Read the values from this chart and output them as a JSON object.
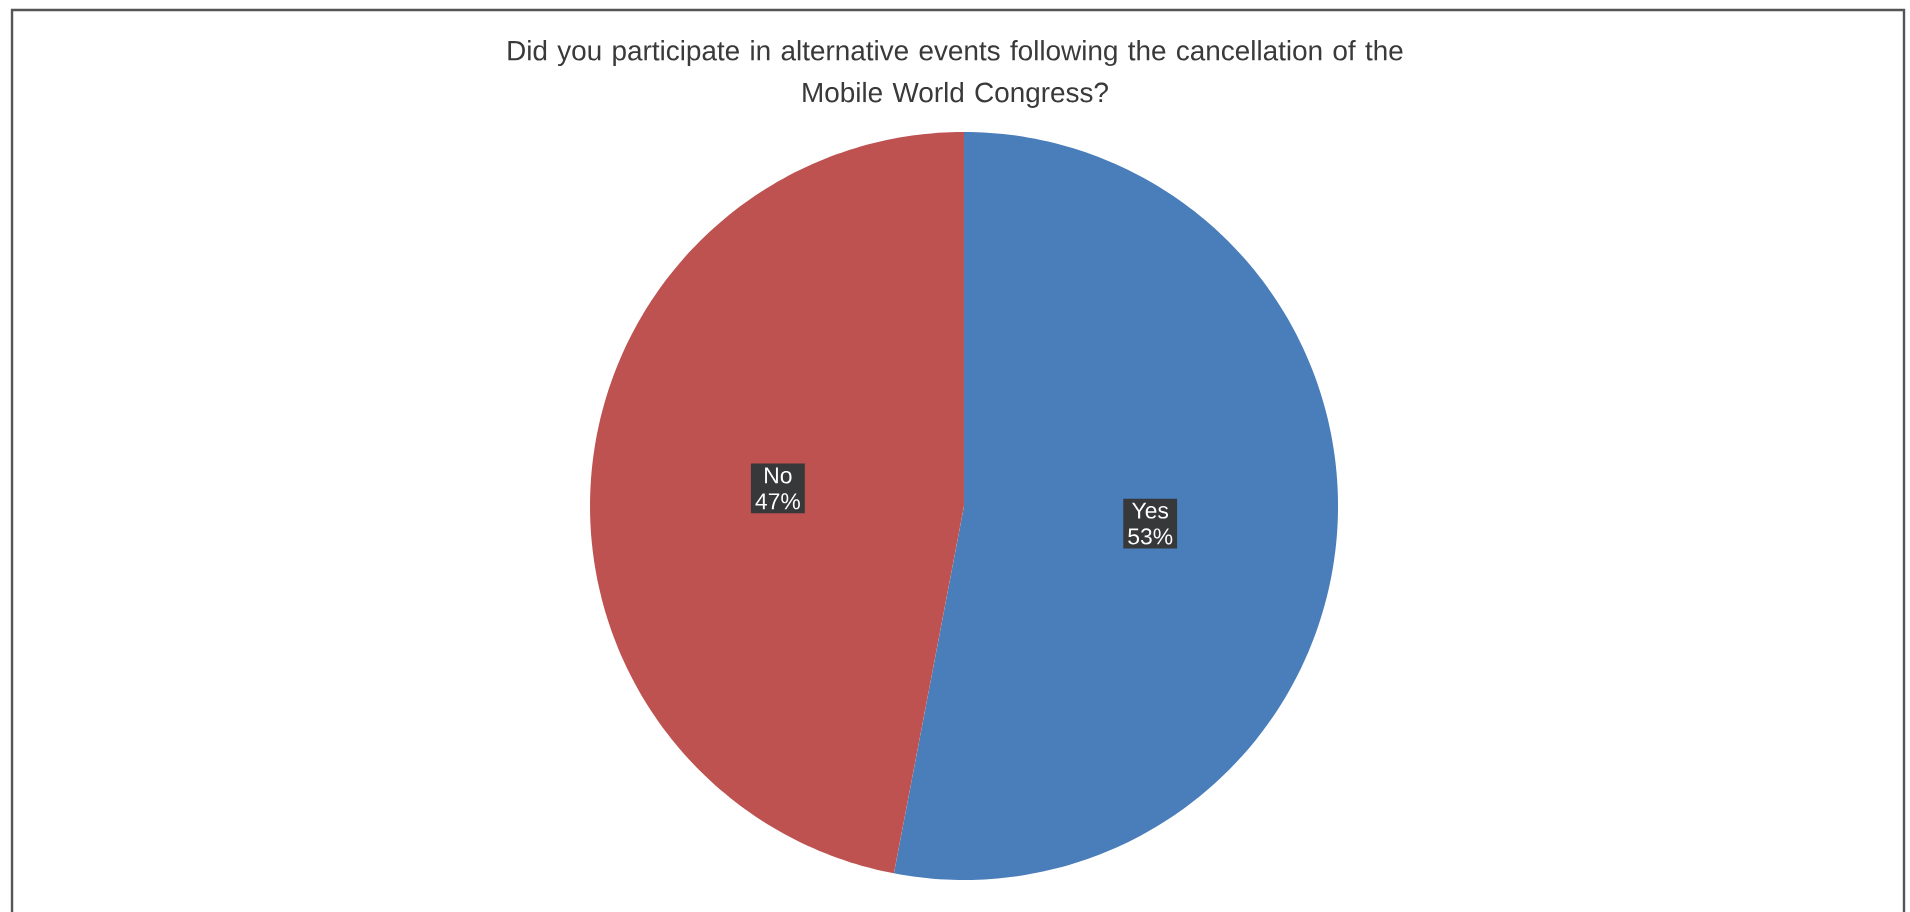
{
  "chart_data": {
    "type": "pie",
    "title": "Did you participate in alternative events following the cancellation of the Mobile World Congress?",
    "categories": [
      "Yes",
      "No"
    ],
    "values": [
      53,
      47
    ],
    "colors": [
      "#4a7ebb",
      "#be5250"
    ],
    "value_labels": [
      "53%",
      "47%"
    ]
  }
}
